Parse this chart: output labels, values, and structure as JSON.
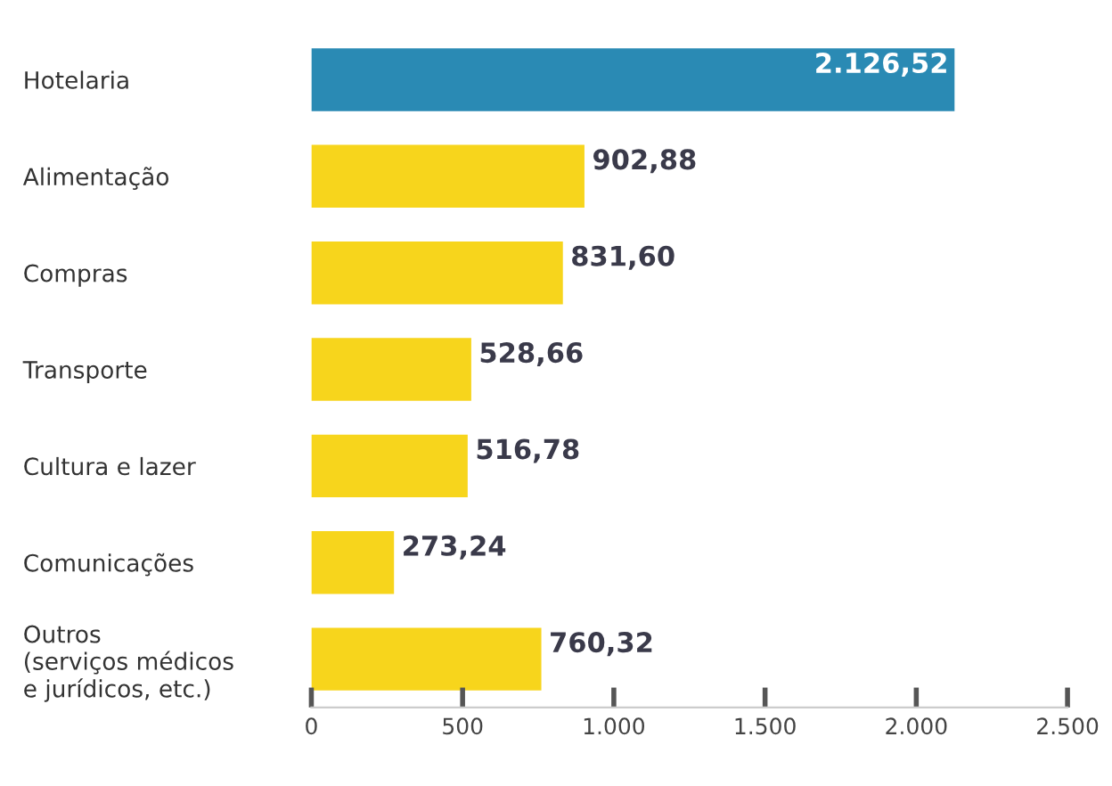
{
  "chart_data": {
    "type": "bar",
    "orientation": "horizontal",
    "categories": [
      "Hotelaria",
      "Alimentação",
      "Compras",
      "Transporte",
      "Cultura e lazer",
      "Comunicações",
      "Outros\n(serviços médicos\ne jurídicos, etc.)"
    ],
    "values": [
      2126.52,
      902.88,
      831.6,
      528.66,
      516.78,
      273.24,
      760.32
    ],
    "colors": [
      "#2a8ab4",
      "#f7d51c",
      "#f7d51c",
      "#f7d51c",
      "#f7d51c",
      "#f7d51c",
      "#f7d51c"
    ],
    "value_labels": [
      "2.126,52",
      "902,88",
      "831,60",
      "528,66",
      "516,78",
      "273,24",
      "760,32"
    ],
    "xlim": [
      0,
      2500
    ],
    "xticks": [
      0,
      500,
      {
        "value": 1000,
        "label": "1.000"
      },
      {
        "value": 1500,
        "label": "1.500"
      },
      {
        "value": 2000,
        "label": "2.000"
      },
      {
        "value": 2500,
        "label": "2.500"
      }
    ]
  }
}
